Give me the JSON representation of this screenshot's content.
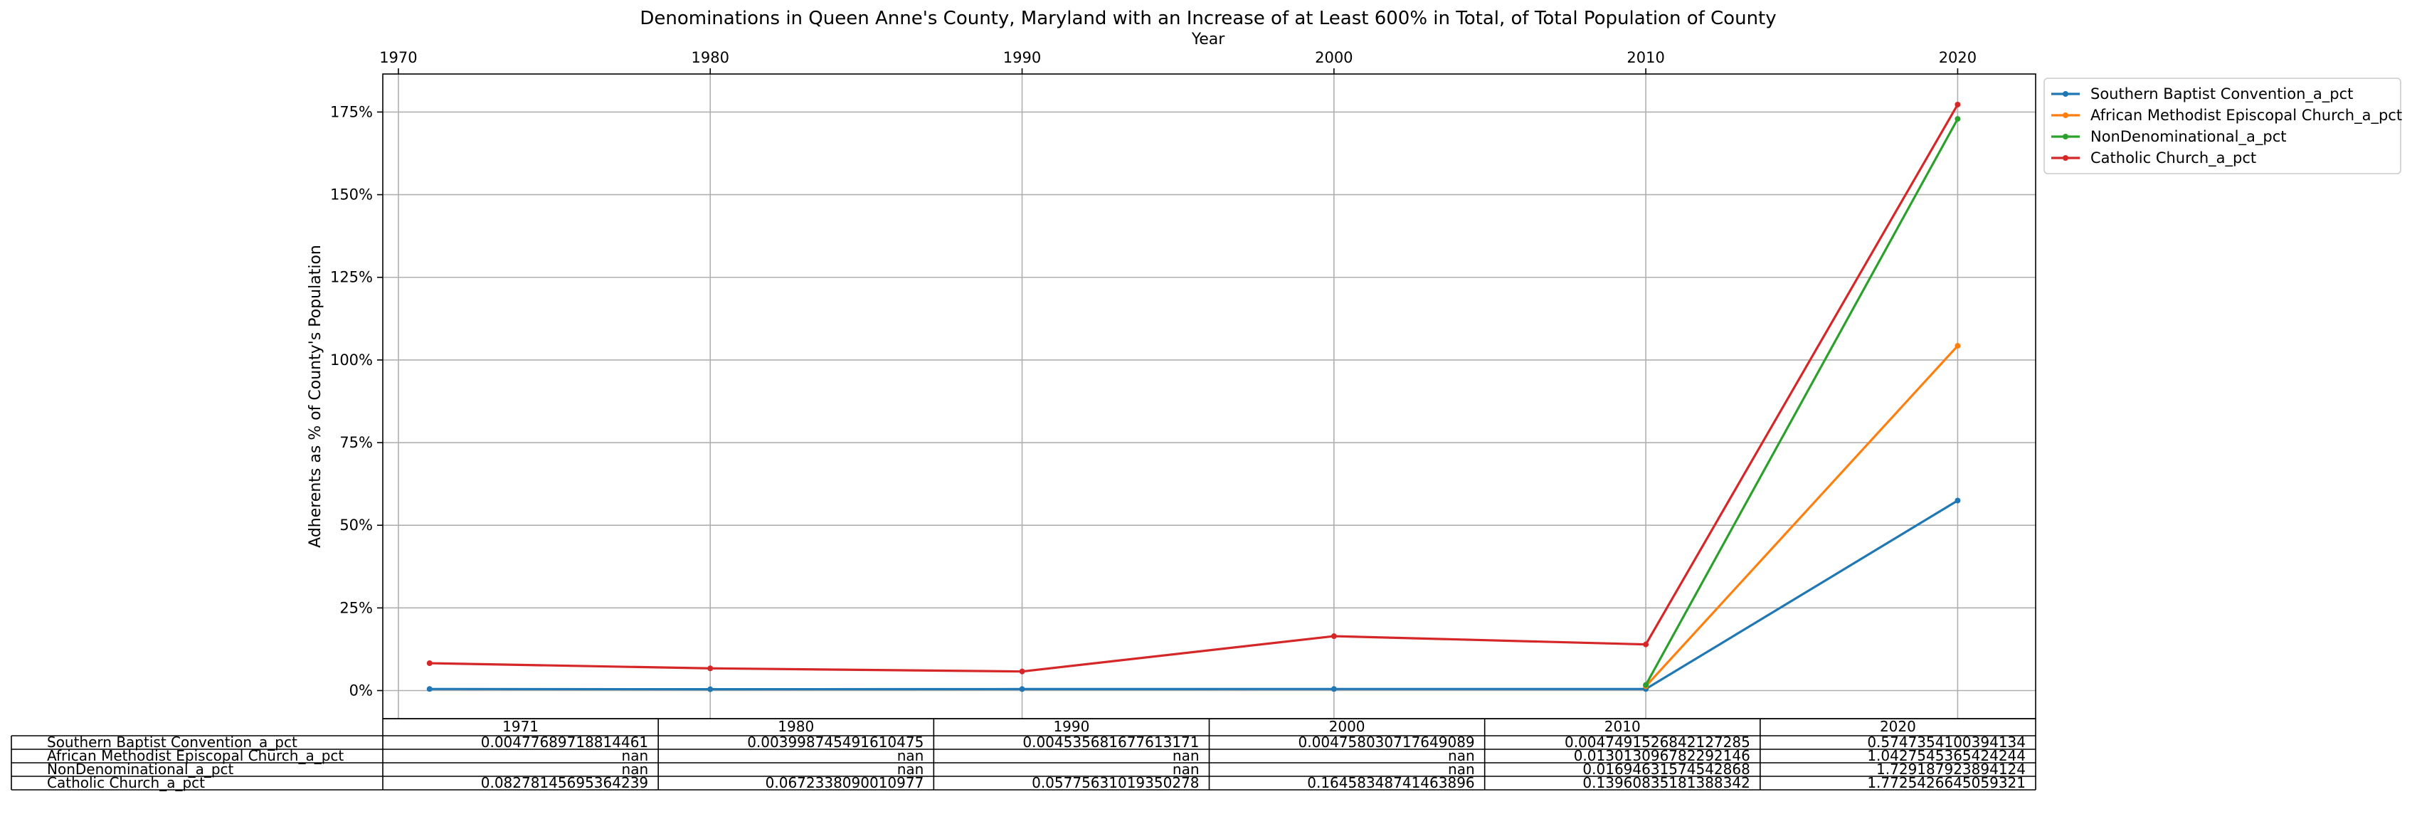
{
  "chart_data": {
    "type": "line",
    "title": "Denominations in Queen Anne's County, Maryland with an Increase of at Least 600% in Total, of Total Population of County",
    "xlabel": "Year",
    "ylabel": "Adherents as % of County's Population",
    "x": [
      1971,
      1980,
      1990,
      2000,
      2010,
      2020
    ],
    "x_ticks": [
      "1970",
      "1980",
      "1990",
      "2000",
      "2010",
      "2020"
    ],
    "xlim": [
      1969.5,
      2022.5
    ],
    "y_ticks": [
      "0%",
      "25%",
      "50%",
      "75%",
      "100%",
      "125%",
      "150%",
      "175%"
    ],
    "ylim": [
      -0.085,
      1.865
    ],
    "y_scale": "percent",
    "grid": true,
    "legend_position": "upper-right-outside",
    "series": [
      {
        "name": "Southern Baptist Convention_a_pct",
        "color": "#1f77b4",
        "values": [
          0.00477689718814461,
          0.003998745491610475,
          0.004535681677613171,
          0.004758030717649089,
          0.0047491526842127285,
          0.5747354100394134
        ],
        "table_values": [
          "0.00477689718814461",
          "0.003998745491610475",
          "0.004535681677613171",
          "0.004758030717649089",
          "0.0047491526842127285",
          "0.5747354100394134"
        ]
      },
      {
        "name": "African Methodist Episcopal Church_a_pct",
        "color": "#ff7f0e",
        "values": [
          null,
          null,
          null,
          null,
          0.013013096782292146,
          1.0427545365424244
        ],
        "table_values": [
          "nan",
          "nan",
          "nan",
          "nan",
          "0.013013096782292146",
          "1.0427545365424244"
        ]
      },
      {
        "name": "NonDenominational_a_pct",
        "color": "#2ca02c",
        "values": [
          null,
          null,
          null,
          null,
          0.01694631574542868,
          1.729187923894124
        ],
        "table_values": [
          "nan",
          "nan",
          "nan",
          "nan",
          "0.01694631574542868",
          "1.729187923894124"
        ]
      },
      {
        "name": "Catholic Church_a_pct",
        "color": "#d62728",
        "values": [
          0.08278145695364239,
          0.0672338090010977,
          0.05775631019350278,
          0.16458348741463896,
          0.13960835181388342,
          1.7725426645059321
        ],
        "table_values": [
          "0.08278145695364239",
          "0.0672338090010977",
          "0.05775631019350278",
          "0.16458348741463896",
          "0.13960835181388342",
          "1.7725426645059321"
        ]
      }
    ],
    "table_columns": [
      "1971",
      "1980",
      "1990",
      "2000",
      "2010",
      "2020"
    ]
  }
}
